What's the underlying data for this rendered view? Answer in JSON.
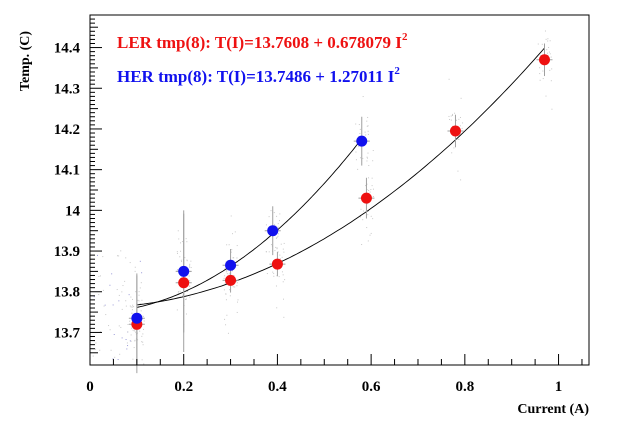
{
  "chart_data": {
    "type": "scatter",
    "xlabel": "Current (A)",
    "ylabel": "Temp. (C)",
    "xlim": [
      0,
      1.065
    ],
    "ylim": [
      13.62,
      14.48
    ],
    "x_ticks": [
      "0",
      "0.2",
      "0.4",
      "0.6",
      "0.8",
      "1"
    ],
    "y_ticks": [
      "13.7",
      "13.8",
      "13.9",
      "14",
      "14.1",
      "14.2",
      "14.3",
      "14.4"
    ],
    "grid": false,
    "legend_placement": "top-left",
    "series": [
      {
        "key": "ler",
        "label_prefix": "LER tmp(8): T(I)=13.7608 + 0.678079 I",
        "label_sup": "2",
        "color": "#ee1111",
        "fit": {
          "a": 13.7608,
          "b": 0.678079
        },
        "points": [
          {
            "x": 0.1,
            "y": 13.72
          },
          {
            "x": 0.2,
            "y": 13.822
          },
          {
            "x": 0.3,
            "y": 13.828
          },
          {
            "x": 0.4,
            "y": 13.868
          },
          {
            "x": 0.59,
            "y": 14.03
          },
          {
            "x": 0.78,
            "y": 14.195
          },
          {
            "x": 0.97,
            "y": 14.37
          }
        ]
      },
      {
        "key": "her",
        "label_prefix": "HER tmp(8): T(I)=13.7486 + 1.27011 I",
        "label_sup": "2",
        "color": "#1111ee",
        "fit": {
          "a": 13.7486,
          "b": 1.27011
        },
        "points": [
          {
            "x": 0.1,
            "y": 13.735
          },
          {
            "x": 0.2,
            "y": 13.85
          },
          {
            "x": 0.3,
            "y": 13.865
          },
          {
            "x": 0.39,
            "y": 13.95
          },
          {
            "x": 0.58,
            "y": 14.17
          }
        ]
      }
    ]
  }
}
